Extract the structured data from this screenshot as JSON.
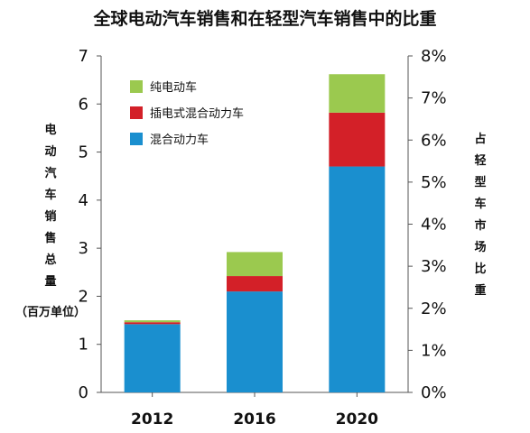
{
  "chart_data": {
    "type": "bar",
    "stacked": true,
    "title": "全球电动汽车销售和在轻型汽车销售中的比重",
    "categories": [
      "2012",
      "2016",
      "2020"
    ],
    "series": [
      {
        "name": "混合动力车",
        "color": "#1a8fcf",
        "values": [
          1.42,
          2.1,
          4.7
        ]
      },
      {
        "name": "插电式混合动力车",
        "color": "#d32028",
        "values": [
          0.04,
          0.32,
          1.12
        ]
      },
      {
        "name": "纯电动车",
        "color": "#9bc94f",
        "values": [
          0.04,
          0.5,
          0.8
        ]
      }
    ],
    "y_left": {
      "label_chars": [
        "电",
        "动",
        "汽",
        "车",
        "销",
        "售",
        "总",
        "量"
      ],
      "label_unit": "（百万单位）",
      "range": [
        0,
        7
      ],
      "ticks": [
        "0",
        "1",
        "2",
        "3",
        "4",
        "5",
        "6",
        "7"
      ]
    },
    "y_right": {
      "label_chars": [
        "占",
        "轻",
        "型",
        "车",
        "市",
        "场",
        "比",
        "重"
      ],
      "range": [
        0,
        8
      ],
      "ticks": [
        "0%",
        "1%",
        "2%",
        "3%",
        "4%",
        "5%",
        "6%",
        "7%",
        "8%"
      ]
    },
    "legend": {
      "placement": "top-left",
      "order": [
        "纯电动车",
        "插电式混合动力车",
        "混合动力车"
      ]
    },
    "grid": false
  }
}
